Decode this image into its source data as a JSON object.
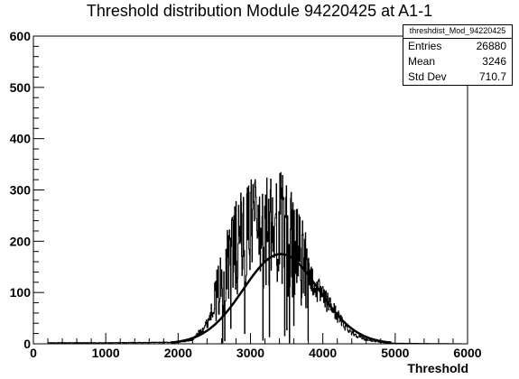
{
  "chart_data": {
    "type": "histogram",
    "title": "Threshold distribution Module 94220425 at A1-1",
    "xlabel": "Threshold",
    "ylabel": "",
    "xlim": [
      0,
      6000
    ],
    "ylim": [
      0,
      600
    ],
    "xticks": [
      "0",
      "1000",
      "2000",
      "3000",
      "4000",
      "5000",
      "6000"
    ],
    "yticks": [
      "0",
      "100",
      "200",
      "300",
      "400",
      "500",
      "600"
    ],
    "grid": false,
    "stats": {
      "name": "threshdist_Mod_94220425",
      "entries_label": "Entries",
      "entries": "26880",
      "mean_label": "Mean",
      "mean": "3246",
      "stddev_label": "Std Dev",
      "stddev": "710.7"
    },
    "fit": {
      "type": "gaussian",
      "amplitude": 175,
      "mean": 3420,
      "sigma": 520
    },
    "histogram_envelope": [
      [
        200,
        2
      ],
      [
        1000,
        2
      ],
      [
        2000,
        3
      ],
      [
        2200,
        8
      ],
      [
        2400,
        40
      ],
      [
        2500,
        80
      ],
      [
        2600,
        120
      ],
      [
        2700,
        160
      ],
      [
        2800,
        190
      ],
      [
        2900,
        200
      ],
      [
        3000,
        210
      ],
      [
        3100,
        205
      ],
      [
        3200,
        210
      ],
      [
        3300,
        215
      ],
      [
        3400,
        220
      ],
      [
        3500,
        200
      ],
      [
        3600,
        185
      ],
      [
        3700,
        160
      ],
      [
        3800,
        140
      ],
      [
        3900,
        110
      ],
      [
        4000,
        90
      ],
      [
        4100,
        75
      ],
      [
        4200,
        55
      ],
      [
        4300,
        35
      ],
      [
        4400,
        22
      ],
      [
        4500,
        14
      ],
      [
        4600,
        8
      ],
      [
        4800,
        3
      ],
      [
        5000,
        1
      ],
      [
        6000,
        0
      ]
    ]
  }
}
